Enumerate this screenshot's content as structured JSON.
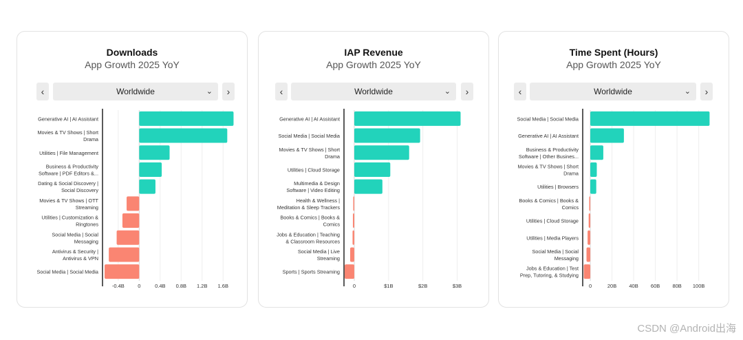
{
  "nav": {
    "prev": "‹",
    "next": "›"
  },
  "watermark": "CSDN @Android出海",
  "chart_data": [
    {
      "type": "bar",
      "orientation": "horizontal",
      "title": "Downloads",
      "subtitle": "App Growth 2025 YoY",
      "region": "Worldwide",
      "categories": [
        [
          "Generative AI | AI Assistant"
        ],
        [
          "Movies & TV Shows | Short",
          "Drama"
        ],
        [
          "Utilities | File Management"
        ],
        [
          "Business & Productivity",
          "Software | PDF Editors &..."
        ],
        [
          "Dating & Social Discovery |",
          "Social Discovery"
        ],
        [
          "Movies & TV Shows | OTT",
          "Streaming"
        ],
        [
          "Utilities | Customization &",
          "Ringtones"
        ],
        [
          "Social Media | Social",
          "Messaging"
        ],
        [
          "Antivirus & Security |",
          "Antivirus & VPN"
        ],
        [
          "Social Media | Social Media"
        ]
      ],
      "values": [
        1.8,
        1.68,
        0.58,
        0.43,
        0.31,
        -0.24,
        -0.32,
        -0.43,
        -0.58,
        -0.66
      ],
      "xlim": [
        -0.7,
        1.82
      ],
      "ticks": [
        -0.4,
        0,
        0.4,
        0.8,
        1.2,
        1.6
      ],
      "tick_labels": [
        "-0.4B",
        "0",
        "0.4B",
        "0.8B",
        "1.2B",
        "1.6B"
      ],
      "positive_color": "#22d3bb",
      "negative_color": "#fa8572"
    },
    {
      "type": "bar",
      "orientation": "horizontal",
      "title": "IAP Revenue",
      "subtitle": "App Growth 2025 YoY",
      "region": "Worldwide",
      "categories": [
        [
          "Generative AI | AI Assistant"
        ],
        [
          "Social Media | Social Media"
        ],
        [
          "Movies & TV Shows | Short",
          "Drama"
        ],
        [
          "Utilities | Cloud Storage"
        ],
        [
          "Multimedia & Design",
          "Software | Video Editing"
        ],
        [
          "Health & Wellness |",
          "Meditation & Sleep Trackers"
        ],
        [
          "Books & Comics | Books &",
          "Comics"
        ],
        [
          "Jobs & Education | Teaching",
          "& Classroom Resources"
        ],
        [
          "Social Media | Live",
          "Streaming"
        ],
        [
          "Sports | Sports Streaming"
        ]
      ],
      "values": [
        3.1,
        1.92,
        1.6,
        1.05,
        0.82,
        -0.03,
        -0.04,
        -0.05,
        -0.12,
        -0.28
      ],
      "xlim": [
        -0.3,
        3.15
      ],
      "ticks": [
        0,
        1,
        2,
        3
      ],
      "tick_labels": [
        "0",
        "$1B",
        "$2B",
        "$3B"
      ],
      "positive_color": "#22d3bb",
      "negative_color": "#fa8572"
    },
    {
      "type": "bar",
      "orientation": "horizontal",
      "title": "Time Spent (Hours)",
      "subtitle": "App Growth 2025 YoY",
      "region": "Worldwide",
      "categories": [
        [
          "Social Media | Social Media"
        ],
        [
          "Generative AI | AI Assistant"
        ],
        [
          "Business & Productivity",
          "Software | Other Busines..."
        ],
        [
          "Movies & TV Shows | Short",
          "Drama"
        ],
        [
          "Utilities | Browsers"
        ],
        [
          "Books & Comics | Books &",
          "Comics"
        ],
        [
          "Utilities | Cloud Storage"
        ],
        [
          "Utilities | Media Players"
        ],
        [
          "Social Media | Social",
          "Messaging"
        ],
        [
          "Jobs & Education | Test",
          "Prep, Tutoring, & Studying"
        ]
      ],
      "values": [
        110,
        31,
        12,
        6,
        5.5,
        -1,
        -1.5,
        -2.5,
        -3.5,
        -6
      ],
      "xlim": [
        -7,
        111
      ],
      "ticks": [
        0,
        20,
        40,
        60,
        80,
        100
      ],
      "tick_labels": [
        "0",
        "20B",
        "40B",
        "60B",
        "80B",
        "100B"
      ],
      "positive_color": "#22d3bb",
      "negative_color": "#fa8572"
    }
  ]
}
